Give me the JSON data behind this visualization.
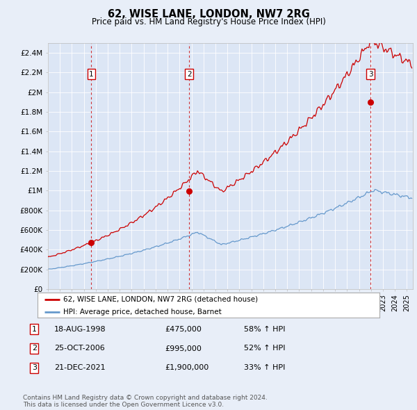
{
  "title": "62, WISE LANE, LONDON, NW7 2RG",
  "subtitle": "Price paid vs. HM Land Registry's House Price Index (HPI)",
  "background_color": "#e8eef8",
  "plot_bg_color": "#dce6f5",
  "ylim": [
    0,
    2500000
  ],
  "yticks": [
    0,
    200000,
    400000,
    600000,
    800000,
    1000000,
    1200000,
    1400000,
    1600000,
    1800000,
    2000000,
    2200000,
    2400000
  ],
  "ytick_labels": [
    "£0",
    "£200K",
    "£400K",
    "£600K",
    "£800K",
    "£1M",
    "£1.2M",
    "£1.4M",
    "£1.6M",
    "£1.8M",
    "£2M",
    "£2.2M",
    "£2.4M"
  ],
  "xlim_start": 1995.0,
  "xlim_end": 2025.5,
  "sale_dates": [
    1998.63,
    2006.81,
    2021.97
  ],
  "sale_prices": [
    475000,
    995000,
    1900000
  ],
  "sale_labels": [
    "1",
    "2",
    "3"
  ],
  "legend_entries": [
    "62, WISE LANE, LONDON, NW7 2RG (detached house)",
    "HPI: Average price, detached house, Barnet"
  ],
  "table_rows": [
    [
      "1",
      "18-AUG-1998",
      "£475,000",
      "58% ↑ HPI"
    ],
    [
      "2",
      "25-OCT-2006",
      "£995,000",
      "52% ↑ HPI"
    ],
    [
      "3",
      "21-DEC-2021",
      "£1,900,000",
      "33% ↑ HPI"
    ]
  ],
  "footnote": "Contains HM Land Registry data © Crown copyright and database right 2024.\nThis data is licensed under the Open Government Licence v3.0.",
  "red_color": "#cc0000",
  "blue_color": "#6699cc"
}
